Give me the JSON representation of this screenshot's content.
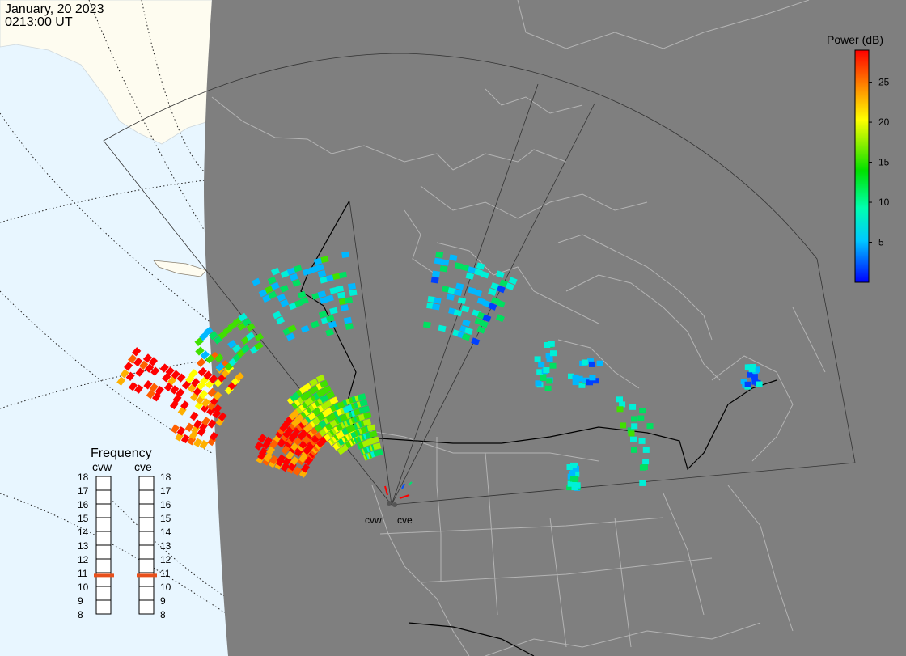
{
  "header": {
    "date": "January, 20 2023",
    "time": "0213:00 UT"
  },
  "colorbar": {
    "title": "Power (dB)",
    "min": 0,
    "max": 29,
    "ticks": [
      "25",
      "20",
      "15",
      "10",
      "5"
    ],
    "tick_values": [
      25,
      20,
      15,
      10,
      5
    ]
  },
  "radars": [
    {
      "id": "cvw",
      "label": "cvw"
    },
    {
      "id": "cve",
      "label": "cve"
    }
  ],
  "frequency_panel": {
    "title": "Frequency",
    "columns": [
      "cvw",
      "cve"
    ],
    "levels": [
      "18",
      "17",
      "16",
      "15",
      "14",
      "13",
      "12",
      "11",
      "10",
      "9",
      "8"
    ],
    "range": [
      8,
      18
    ],
    "selected_mhz": {
      "cvw": 10.8,
      "cve": 10.8
    },
    "marker_color": "#e8501c"
  },
  "colors": {
    "night": "#7f7f7f",
    "day_ocean": "#e8f6ff",
    "day_land": "#fefcf0",
    "map_lines": "#b4b4b4",
    "fov_outline": "#333333"
  }
}
